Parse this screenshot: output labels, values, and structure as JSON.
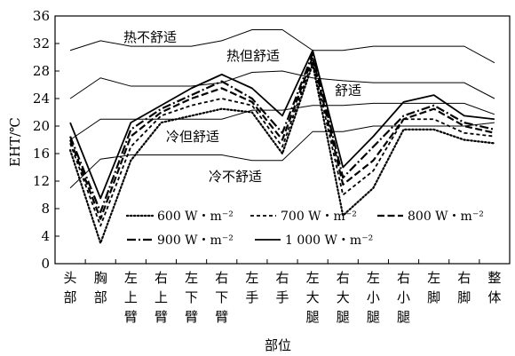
{
  "chart_data": {
    "type": "line",
    "xlabel": "部位",
    "ylabel": "EHT/℃",
    "ylim": [
      0,
      36
    ],
    "yticks": [
      0,
      4,
      8,
      12,
      16,
      20,
      24,
      28,
      32,
      36
    ],
    "categories": [
      "头部",
      "胸部",
      "左上臂",
      "右上臂",
      "左下臂",
      "右下臂",
      "左手",
      "右手",
      "左大腿",
      "右大腿",
      "左小腿",
      "右小腿",
      "左脚",
      "右脚",
      "整体"
    ],
    "zone_labels": [
      "热不舒适",
      "热但舒适",
      "舒适",
      "冷但舒适",
      "冷不舒适"
    ],
    "comfort_boundaries": [
      {
        "values": [
          31.0,
          32.4,
          31.6,
          31.6,
          31.6,
          32.4,
          34.0,
          34.0,
          31.0,
          31.0,
          31.6,
          31.6,
          31.6,
          31.6,
          29.2
        ]
      },
      {
        "values": [
          24.0,
          27.0,
          25.8,
          25.8,
          25.8,
          26.3,
          27.8,
          28.0,
          27.0,
          26.6,
          26.3,
          26.3,
          26.3,
          26.3,
          24.0
        ]
      },
      {
        "values": [
          18.0,
          21.0,
          21.0,
          21.0,
          21.0,
          21.0,
          22.3,
          22.3,
          23.0,
          23.0,
          23.3,
          23.3,
          23.3,
          23.3,
          21.7
        ]
      },
      {
        "values": [
          11.0,
          15.2,
          15.8,
          15.8,
          15.8,
          15.8,
          15.0,
          15.0,
          19.2,
          19.2,
          20.0,
          20.0,
          20.0,
          20.0,
          20.5
        ]
      }
    ],
    "series": [
      {
        "name": "600 W・m⁻²",
        "style": "dotted",
        "values": [
          16.5,
          3.0,
          15.0,
          20.5,
          21.5,
          22.5,
          22.0,
          16.0,
          29.0,
          7.0,
          11.0,
          19.5,
          19.5,
          18.0,
          17.5
        ]
      },
      {
        "name": "700 W・m⁻²",
        "style": "dashed",
        "values": [
          17.5,
          5.5,
          17.0,
          21.5,
          23.0,
          24.0,
          23.0,
          17.0,
          29.5,
          10.0,
          13.5,
          21.0,
          21.0,
          19.0,
          18.5
        ]
      },
      {
        "name": "800 W・m⁻²",
        "style": "longdash",
        "values": [
          18.0,
          6.5,
          18.5,
          22.0,
          24.0,
          25.5,
          23.5,
          18.0,
          30.0,
          11.5,
          15.0,
          21.0,
          22.5,
          20.0,
          19.0
        ]
      },
      {
        "name": "900 W・m⁻²",
        "style": "dashdot",
        "values": [
          18.5,
          7.5,
          19.5,
          22.5,
          24.5,
          26.5,
          24.0,
          19.0,
          30.5,
          12.5,
          17.0,
          21.5,
          23.0,
          20.5,
          19.5
        ]
      },
      {
        "name": "1 000 W・m⁻²",
        "style": "solid",
        "values": [
          20.5,
          9.5,
          20.5,
          23.0,
          25.5,
          27.5,
          25.5,
          21.5,
          31.0,
          14.0,
          18.5,
          23.5,
          24.5,
          21.5,
          21.0
        ]
      }
    ]
  }
}
